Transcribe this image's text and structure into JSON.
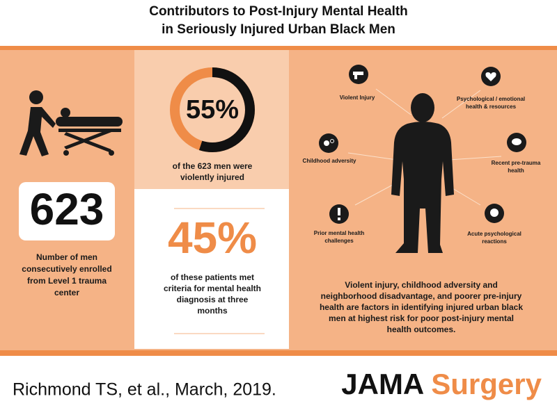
{
  "header": {
    "title_lines": [
      "Contributors to Post-Injury Mental Health",
      "in Seriously Injured Urban Black Men"
    ]
  },
  "stats": {
    "enrolled": {
      "number": 623,
      "caption_lines": [
        "Number of men",
        "consecutively enrolled",
        "from Level 1 trauma",
        "center"
      ]
    },
    "violent": {
      "percent": {
        "value": 55,
        "label": "55%"
      },
      "caption_lines": [
        "of the 623 men were",
        "violently injured"
      ]
    },
    "diagnosis": {
      "percent": "45%",
      "caption_lines": [
        "of these patients met",
        "criteria for mental health",
        "diagnosis at three",
        "months"
      ]
    }
  },
  "factors": [
    {
      "label_lines": [
        "Violent Injury"
      ]
    },
    {
      "label_lines": [
        "Psychological / emotional",
        "health & resources"
      ]
    },
    {
      "label_lines": [
        "Childhood adversity"
      ]
    },
    {
      "label_lines": [
        "Recent pre-trauma",
        "health"
      ]
    },
    {
      "label_lines": [
        "Prior mental health",
        "challenges"
      ]
    },
    {
      "label_lines": [
        "Acute psychological",
        "reactions"
      ]
    }
  ],
  "summary_lines": [
    "Violent injury, childhood adversity and",
    "neighborhood disadvantage, and poorer pre-injury",
    "health are factors in identifying injured urban black",
    "men at highest risk for poor post-injury mental",
    "health outcomes."
  ],
  "footer": {
    "citation": "Richmond TS, et al., March, 2019.",
    "journal_a": "JAMA",
    "journal_b": "Surgery"
  }
}
